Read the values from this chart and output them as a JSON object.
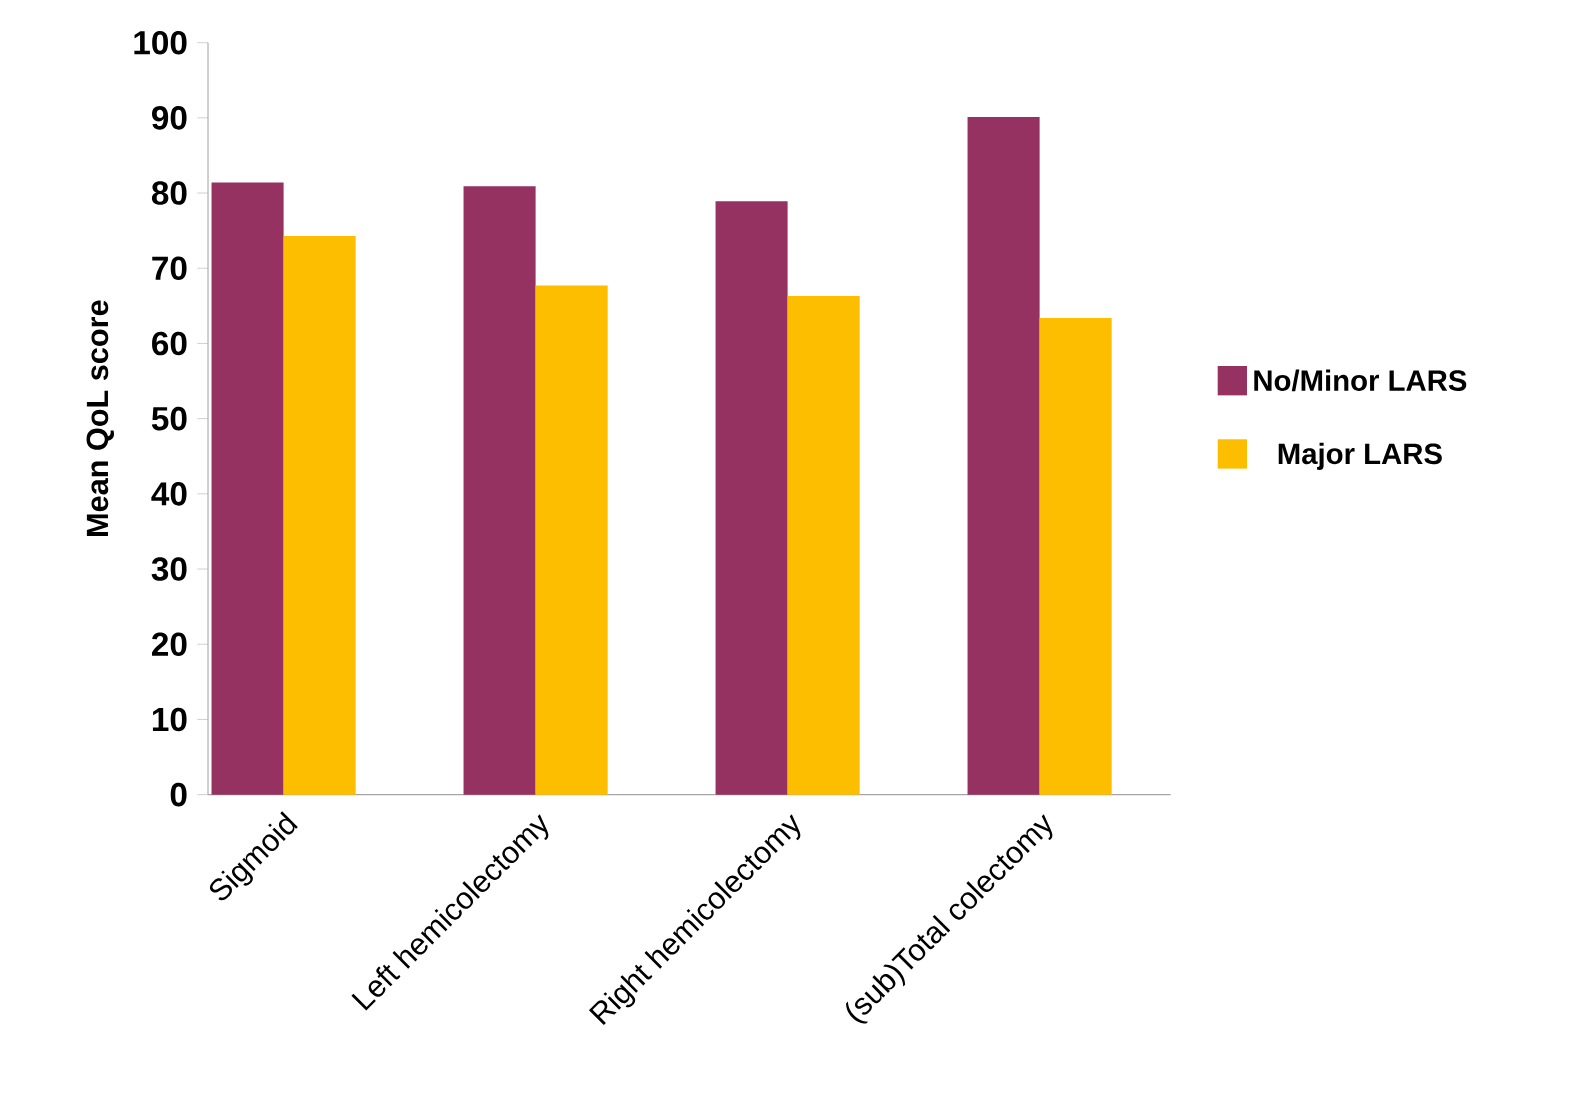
{
  "chart_data": {
    "type": "bar",
    "ylabel": "Mean QoL score",
    "categories": [
      "Sigmoid",
      "Left hemicolectomy",
      "Right hemicolectomy",
      "(sub)Total colectomy"
    ],
    "series": [
      {
        "name": "No/Minor LARS",
        "color": "#953262",
        "values": [
          81.4,
          80.9,
          78.9,
          90.1
        ]
      },
      {
        "name": "Major LARS",
        "color": "#fdbe00",
        "values": [
          74.3,
          67.7,
          66.3,
          63.4
        ]
      }
    ],
    "ylim": [
      0,
      100
    ],
    "yticks": [
      0,
      10,
      20,
      30,
      40,
      50,
      60,
      70,
      80,
      90,
      100
    ],
    "grid": false,
    "legend": "right"
  }
}
